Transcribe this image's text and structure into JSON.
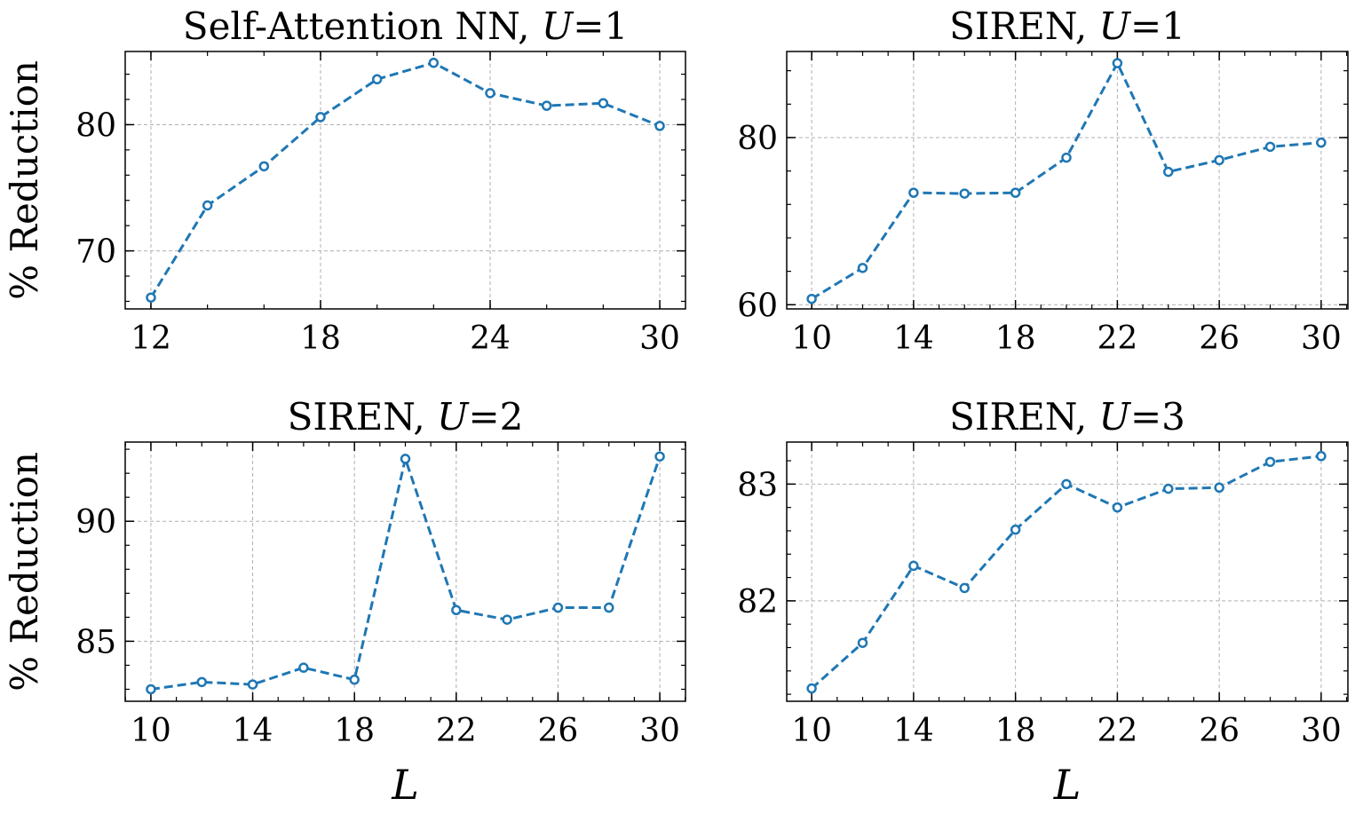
{
  "chart_data": [
    {
      "type": "line",
      "title": "Self-Attention NN, ",
      "title_var": "U",
      "title_value": "=1",
      "xlabel": "",
      "ylabel": "% Reduction",
      "x": [
        12,
        14,
        16,
        18,
        20,
        22,
        24,
        26,
        28,
        30
      ],
      "values": [
        66.3,
        73.6,
        76.7,
        80.6,
        83.6,
        84.9,
        82.5,
        81.5,
        81.7,
        79.9
      ],
      "xlim": [
        11.09,
        30.91
      ],
      "ylim": [
        65.4,
        85.8
      ],
      "xticks": [
        12,
        18,
        24,
        30
      ],
      "yticks": [
        70,
        80
      ],
      "xminor": 2,
      "yminor": 2,
      "grid": true
    },
    {
      "type": "line",
      "title": "SIREN, ",
      "title_var": "U",
      "title_value": "=1",
      "xlabel": "",
      "ylabel": "",
      "x": [
        10,
        12,
        14,
        16,
        18,
        20,
        22,
        24,
        26,
        28,
        30
      ],
      "values": [
        60.7,
        64.4,
        73.4,
        73.3,
        73.4,
        77.6,
        88.9,
        75.9,
        77.3,
        78.9,
        79.4
      ],
      "xlim": [
        9.02,
        31.05
      ],
      "ylim": [
        59.5,
        90.3
      ],
      "xticks": [
        10,
        14,
        18,
        22,
        26,
        30
      ],
      "yticks": [
        60,
        80
      ],
      "xminor": 1,
      "yminor": 4,
      "grid": true
    },
    {
      "type": "line",
      "title": "SIREN, ",
      "title_var": "U",
      "title_value": "=2",
      "xlabel": "L",
      "ylabel": "% Reduction",
      "x": [
        10,
        12,
        14,
        16,
        18,
        20,
        22,
        24,
        26,
        28,
        30
      ],
      "values": [
        83.0,
        83.3,
        83.2,
        83.9,
        83.4,
        92.6,
        86.3,
        85.9,
        86.4,
        86.4,
        92.7
      ],
      "xlim": [
        8.99,
        31.01
      ],
      "ylim": [
        82.5,
        93.3
      ],
      "xticks": [
        10,
        14,
        18,
        22,
        26,
        30
      ],
      "yticks": [
        85,
        90
      ],
      "xminor": 1,
      "yminor": 1,
      "grid": true
    },
    {
      "type": "line",
      "title": "SIREN, ",
      "title_var": "U",
      "title_value": "=3",
      "xlabel": "L",
      "ylabel": "",
      "x": [
        10,
        12,
        14,
        16,
        18,
        20,
        22,
        24,
        26,
        28,
        30
      ],
      "values": [
        81.25,
        81.64,
        82.3,
        82.11,
        82.61,
        83.0,
        82.8,
        82.96,
        82.97,
        83.19,
        83.24
      ],
      "xlim": [
        9.02,
        31.05
      ],
      "ylim": [
        81.14,
        83.36
      ],
      "xticks": [
        10,
        14,
        18,
        22,
        26,
        30
      ],
      "yticks": [
        82,
        83
      ],
      "xminor": 1,
      "yminor": 0.2,
      "grid": true
    }
  ],
  "colors": {
    "series": "#1f77b4",
    "grid": "#b0b0b0"
  }
}
